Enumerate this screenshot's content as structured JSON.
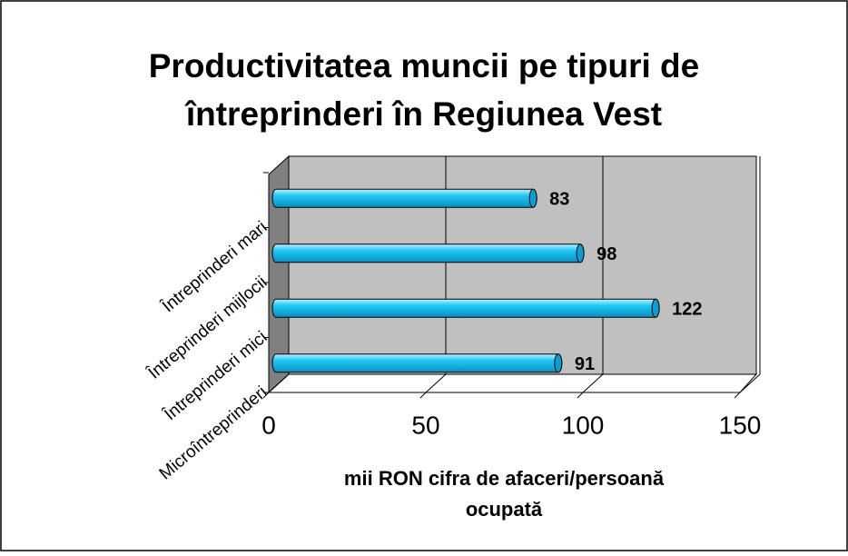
{
  "chart_data": {
    "type": "bar",
    "orientation": "horizontal",
    "title": [
      "Productivitatea muncii pe tipuri de",
      "întreprinderi în Regiunea Vest"
    ],
    "categories": [
      "Microîntreprinderi",
      "Întreprinderi mici",
      "Întreprinderi mijlocii",
      "Întreprinderi mari"
    ],
    "values": [
      91,
      122,
      98,
      83
    ],
    "color": "#1ec8f5",
    "xlim": [
      0,
      150
    ],
    "xticks": [
      0,
      50,
      100,
      150
    ],
    "xlabel": [
      "mii RON cifra de afaceri/persoană",
      "ocupată"
    ],
    "grid": true
  }
}
